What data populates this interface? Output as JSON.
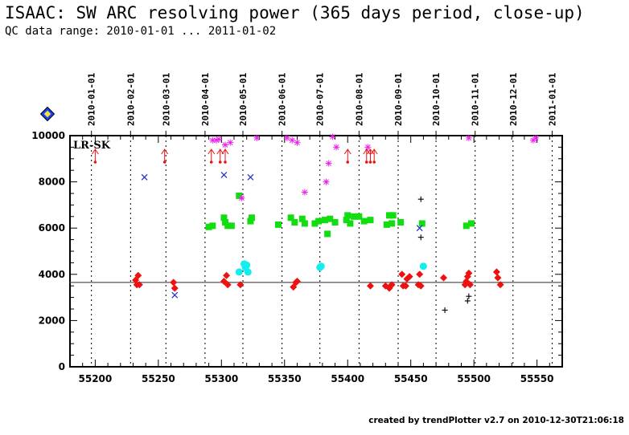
{
  "title": "ISAAC: SW ARC resolving power (365 days period, close-up)",
  "subtitle": "QC data range: 2010-01-01 ... 2011-01-02",
  "footer": "created by trendPlotter v2.7 on 2010-12-30T21:06:18",
  "chart_data": {
    "type": "scatter",
    "annotation": "LR-SK",
    "xlim": [
      55180,
      55570
    ],
    "ylim": [
      0,
      10000
    ],
    "x_ticks": [
      55200,
      55250,
      55300,
      55350,
      55400,
      55450,
      55500,
      55550
    ],
    "y_ticks": [
      0,
      2000,
      4000,
      6000,
      8000,
      10000
    ],
    "reference_line": 3650,
    "date_markers": [
      {
        "label": "2010-01-01",
        "mjd": 55197
      },
      {
        "label": "2010-02-01",
        "mjd": 55228
      },
      {
        "label": "2010-03-01",
        "mjd": 55256
      },
      {
        "label": "2010-04-01",
        "mjd": 55287
      },
      {
        "label": "2010-05-01",
        "mjd": 55317
      },
      {
        "label": "2010-06-01",
        "mjd": 55348
      },
      {
        "label": "2010-07-01",
        "mjd": 55378
      },
      {
        "label": "2010-08-01",
        "mjd": 55409
      },
      {
        "label": "2010-09-01",
        "mjd": 55440
      },
      {
        "label": "2010-10-01",
        "mjd": 55470
      },
      {
        "label": "2010-11-01",
        "mjd": 55501
      },
      {
        "label": "2010-12-01",
        "mjd": 55531
      },
      {
        "label": "2011-01-01",
        "mjd": 55562
      }
    ],
    "colors": {
      "red": "#ee1111",
      "green": "#11dd11",
      "magenta": "#ee22ee",
      "cyan": "#11eeee",
      "blue": "#2233cc",
      "black": "#000000",
      "badge": "#1144ff"
    },
    "series": [
      {
        "marker": "diamond",
        "color": "red",
        "points": [
          [
            55232,
            3750
          ],
          [
            55233,
            3550
          ],
          [
            55234,
            3950
          ],
          [
            55235,
            3550
          ],
          [
            55262,
            3650
          ],
          [
            55263,
            3400
          ],
          [
            55302,
            3700
          ],
          [
            55304,
            3950
          ],
          [
            55305,
            3550
          ],
          [
            55315,
            3550
          ],
          [
            55357,
            3450
          ],
          [
            55359,
            3650
          ],
          [
            55360,
            3700
          ],
          [
            55418,
            3500
          ],
          [
            55430,
            3500
          ],
          [
            55433,
            3400
          ],
          [
            55434,
            3500
          ],
          [
            55435,
            3550
          ],
          [
            55443,
            4000
          ],
          [
            55444,
            3500
          ],
          [
            55446,
            3500
          ],
          [
            55447,
            3800
          ],
          [
            55449,
            3900
          ],
          [
            55456,
            3550
          ],
          [
            55457,
            4000
          ],
          [
            55458,
            3500
          ],
          [
            55476,
            3850
          ],
          [
            55493,
            3550
          ],
          [
            55494,
            3700
          ],
          [
            55495,
            3900
          ],
          [
            55496,
            4050
          ],
          [
            55497,
            3550
          ],
          [
            55518,
            4100
          ],
          [
            55519,
            3850
          ],
          [
            55521,
            3550
          ]
        ]
      },
      {
        "marker": "square",
        "color": "green",
        "points": [
          [
            55290,
            6050
          ],
          [
            55293,
            6100
          ],
          [
            55302,
            6450
          ],
          [
            55303,
            6250
          ],
          [
            55305,
            6100
          ],
          [
            55308,
            6100
          ],
          [
            55314,
            7400
          ],
          [
            55323,
            6300
          ],
          [
            55324,
            6450
          ],
          [
            55345,
            6150
          ],
          [
            55355,
            6450
          ],
          [
            55358,
            6250
          ],
          [
            55364,
            6400
          ],
          [
            55366,
            6200
          ],
          [
            55374,
            6200
          ],
          [
            55377,
            6300
          ],
          [
            55382,
            6350
          ],
          [
            55384,
            5750
          ],
          [
            55386,
            6400
          ],
          [
            55390,
            6250
          ],
          [
            55399,
            6350
          ],
          [
            55400,
            6550
          ],
          [
            55402,
            6200
          ],
          [
            55405,
            6500
          ],
          [
            55409,
            6500
          ],
          [
            55413,
            6300
          ],
          [
            55418,
            6350
          ],
          [
            55431,
            6150
          ],
          [
            55433,
            6550
          ],
          [
            55435,
            6200
          ],
          [
            55436,
            6550
          ],
          [
            55442,
            6250
          ],
          [
            55459,
            6200
          ],
          [
            55494,
            6100
          ],
          [
            55498,
            6200
          ]
        ]
      },
      {
        "marker": "asterisk",
        "color": "magenta",
        "points": [
          [
            55293,
            9800
          ],
          [
            55296,
            9800
          ],
          [
            55298,
            9850
          ],
          [
            55303,
            9600
          ],
          [
            55307,
            9700
          ],
          [
            55316,
            7300
          ],
          [
            55328,
            9900
          ],
          [
            55352,
            9900
          ],
          [
            55356,
            9800
          ],
          [
            55360,
            9700
          ],
          [
            55366,
            7550
          ],
          [
            55383,
            8000
          ],
          [
            55385,
            8800
          ],
          [
            55388,
            9950
          ],
          [
            55391,
            9500
          ],
          [
            55416,
            9500
          ],
          [
            55496,
            9900
          ],
          [
            55547,
            9800
          ],
          [
            55549,
            9900
          ]
        ]
      },
      {
        "marker": "circle",
        "color": "cyan",
        "points": [
          [
            55314,
            4100
          ],
          [
            55318,
            4450
          ],
          [
            55319,
            4300
          ],
          [
            55320,
            4400
          ],
          [
            55321,
            4100
          ],
          [
            55378,
            4300
          ],
          [
            55379,
            4350
          ],
          [
            55460,
            4350
          ]
        ]
      },
      {
        "marker": "cross",
        "color": "blue",
        "points": [
          [
            55239,
            8200
          ],
          [
            55263,
            3100
          ],
          [
            55302,
            8300
          ],
          [
            55323,
            8200
          ],
          [
            55457,
            6000
          ]
        ]
      },
      {
        "marker": "plus",
        "color": "black",
        "points": [
          [
            55458,
            7250
          ],
          [
            55458,
            5600
          ],
          [
            55477,
            2450
          ],
          [
            55495,
            2850
          ],
          [
            55496,
            3050
          ]
        ]
      },
      {
        "marker": "offscale-arrow",
        "color": "red",
        "points": [
          [
            55200,
            10000
          ],
          [
            55255,
            10000
          ],
          [
            55292,
            10000
          ],
          [
            55299,
            10000
          ],
          [
            55303,
            10000
          ],
          [
            55400,
            10000
          ],
          [
            55415,
            10000
          ],
          [
            55418,
            10000
          ],
          [
            55421,
            10000
          ]
        ]
      }
    ]
  }
}
